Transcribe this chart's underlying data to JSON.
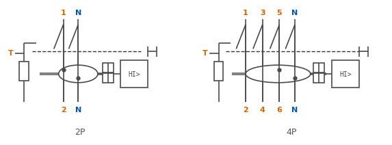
{
  "bg_color": "#ffffff",
  "line_color": "#4a4a4a",
  "orange_color": "#cc6600",
  "blue_color": "#0055aa",
  "gray_color": "#808080",
  "dash_color": "#333333",
  "label_2P": "2P",
  "label_4P": "4P",
  "T_label": "T",
  "top_labels_2P": [
    "1",
    "N"
  ],
  "top_labels_4P": [
    "1",
    "3",
    "5",
    "N"
  ],
  "bot_labels_2P": [
    "2",
    "N"
  ],
  "bot_labels_4P": [
    "2",
    "4",
    "6",
    "N"
  ],
  "figsize": [
    5.73,
    2.12
  ],
  "dpi": 100,
  "top_cols_2P": [
    "orange",
    "blue"
  ],
  "top_cols_4P": [
    "orange",
    "orange",
    "orange",
    "blue"
  ],
  "bot_cols_2P": [
    "orange",
    "blue"
  ],
  "bot_cols_4P": [
    "orange",
    "orange",
    "orange",
    "blue"
  ]
}
